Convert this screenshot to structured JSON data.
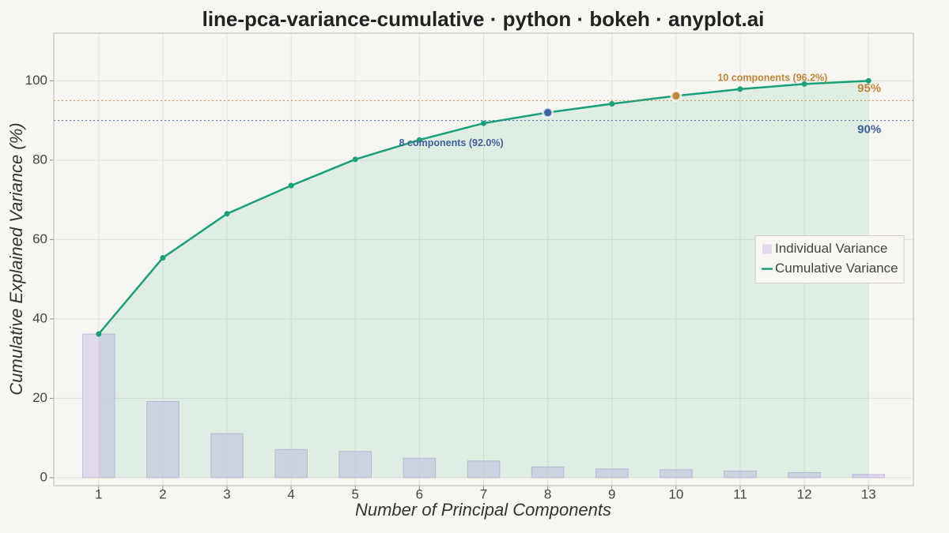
{
  "chart_data": {
    "type": "line",
    "title": "line-pca-variance-cumulative · python · bokeh · anyplot.ai",
    "xlabel": "Number of Principal Components",
    "ylabel": "Cumulative Explained Variance (%)",
    "x": [
      1,
      2,
      3,
      4,
      5,
      6,
      7,
      8,
      9,
      10,
      11,
      12,
      13
    ],
    "series": [
      {
        "name": "Individual Variance",
        "type": "bar",
        "color": "#d9cfe9",
        "values": [
          36.2,
          19.2,
          11.1,
          7.1,
          6.6,
          4.9,
          4.2,
          2.7,
          2.2,
          2.0,
          1.7,
          1.3,
          0.8
        ]
      },
      {
        "name": "Cumulative Variance",
        "type": "line",
        "color": "#18a07a",
        "values": [
          36.2,
          55.4,
          66.5,
          73.6,
          80.2,
          85.1,
          89.3,
          92.0,
          94.2,
          96.2,
          97.9,
          99.2,
          100.0
        ]
      }
    ],
    "thresholds": [
      {
        "value": 95,
        "label": "95%",
        "color": "#c0863a"
      },
      {
        "value": 90,
        "label": "90%",
        "color": "#3d5f9c"
      }
    ],
    "annotations": [
      {
        "text": "8 components (92.0%)",
        "x": 8,
        "y": 92.0,
        "color": "#3d5f9c"
      },
      {
        "text": "10 components (96.2%)",
        "x": 10,
        "y": 96.2,
        "color": "#c0863a"
      }
    ],
    "xlim": [
      0.3,
      13.7
    ],
    "ylim": [
      -2,
      112
    ],
    "xticks": [
      1,
      2,
      3,
      4,
      5,
      6,
      7,
      8,
      9,
      10,
      11,
      12,
      13
    ],
    "yticks": [
      0,
      20,
      40,
      60,
      80,
      100
    ],
    "grid": true,
    "legend": "right"
  }
}
